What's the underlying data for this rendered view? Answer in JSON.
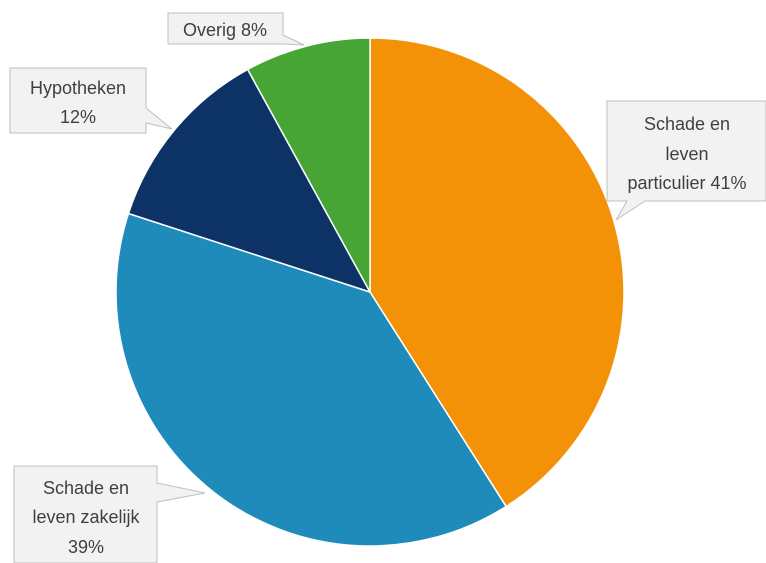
{
  "chart_data": {
    "type": "pie",
    "title": "",
    "start_angle_deg": 0,
    "direction": "clockwise",
    "slices": [
      {
        "label_lines": [
          "Schade en",
          "leven",
          "particulier 41%"
        ],
        "value": 41,
        "color": "#F39207"
      },
      {
        "label_lines": [
          "Schade en",
          "leven zakelijk",
          "39%"
        ],
        "value": 39,
        "color": "#1F8BBA"
      },
      {
        "label_lines": [
          "Hypotheken",
          "12%"
        ],
        "value": 12,
        "color": "#0D3366"
      },
      {
        "label_lines": [
          "Overig 8%"
        ],
        "value": 8,
        "color": "#46A535"
      }
    ]
  }
}
